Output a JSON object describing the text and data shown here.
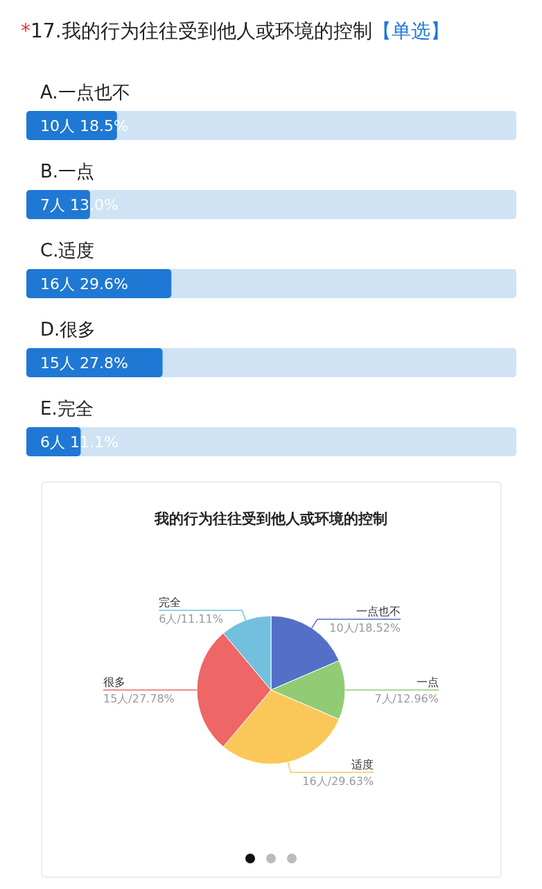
{
  "chart_data": [
    {
      "type": "bar",
      "orientation": "horizontal",
      "title": "*17.我的行为往往受到他人或环境的控制",
      "subtitle": "【单选】",
      "categories": [
        "A.一点也不",
        "B.一点",
        "C.适度",
        "D.很多",
        "E.完全"
      ],
      "values": [
        18.5,
        13.0,
        29.6,
        27.8,
        11.1
      ],
      "value_labels": [
        "10人  18.5%",
        "7人  13.0%",
        "16人  29.6%",
        "15人  27.8%",
        "6人  11.1%"
      ],
      "xlim": [
        0,
        100
      ],
      "color": "#1f78d3"
    },
    {
      "type": "pie",
      "title": "我的行为往往受到他人或环境的控制",
      "categories": [
        "一点也不",
        "一点",
        "适度",
        "很多",
        "完全"
      ],
      "values": [
        10,
        7,
        16,
        15,
        6
      ],
      "value_labels": [
        "10人/18.52%",
        "7人/12.96%",
        "16人/29.63%",
        "15人/27.78%",
        "6人/11.11%"
      ],
      "colors": [
        "#5470c6",
        "#91cc75",
        "#fac858",
        "#ee6666",
        "#73c0de"
      ]
    }
  ]
}
